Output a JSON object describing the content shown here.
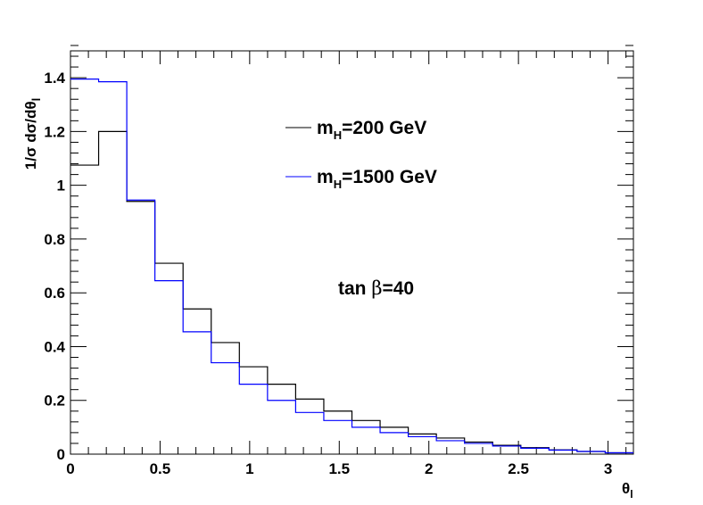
{
  "chart_data": {
    "type": "histogram",
    "bin_edges": [
      0,
      0.1571,
      0.3142,
      0.4712,
      0.6283,
      0.7854,
      0.9425,
      1.0996,
      1.2566,
      1.4137,
      1.5708,
      1.7279,
      1.885,
      2.042,
      2.1991,
      2.3562,
      2.5133,
      2.6704,
      2.8274,
      2.9845,
      3.1416
    ],
    "series": [
      {
        "name": "m_H=200 GeV",
        "label_main": "m",
        "label_sub": "H",
        "label_rest": "=200 GeV",
        "color": "#000000",
        "values": [
          1.075,
          1.2,
          0.94,
          0.71,
          0.54,
          0.415,
          0.325,
          0.26,
          0.205,
          0.16,
          0.125,
          0.1,
          0.075,
          0.06,
          0.045,
          0.033,
          0.024,
          0.016,
          0.01,
          0.005
        ]
      },
      {
        "name": "m_H=1500 GeV",
        "label_main": "m",
        "label_sub": "H",
        "label_rest": "=1500 GeV",
        "color": "#0000ff",
        "values": [
          1.395,
          1.385,
          0.945,
          0.645,
          0.455,
          0.34,
          0.26,
          0.2,
          0.155,
          0.125,
          0.1,
          0.08,
          0.065,
          0.05,
          0.04,
          0.03,
          0.022,
          0.015,
          0.01,
          0.005
        ]
      }
    ],
    "xlim": [
      0,
      3.1416
    ],
    "ylim": [
      0,
      1.5
    ],
    "xticks": [
      0,
      0.5,
      1,
      1.5,
      2,
      2.5,
      3
    ],
    "xtick_labels": [
      "0",
      "0.5",
      "1",
      "1.5",
      "2",
      "2.5",
      "3"
    ],
    "yticks": [
      0,
      0.2,
      0.4,
      0.6,
      0.8,
      1.0,
      1.2,
      1.4
    ],
    "ytick_labels": [
      "0",
      "0.2",
      "0.4",
      "0.6",
      "0.8",
      "1",
      "1.2",
      "1.4"
    ],
    "xlabel": {
      "main": "θ",
      "sub": "l"
    },
    "ylabel": {
      "main": "1/σ dσ/dθ",
      "sub": "l"
    },
    "annotation": {
      "pre": "tan ",
      "symbol": "β",
      "post": "=40"
    },
    "legend_position": "top-center",
    "grid": false
  }
}
